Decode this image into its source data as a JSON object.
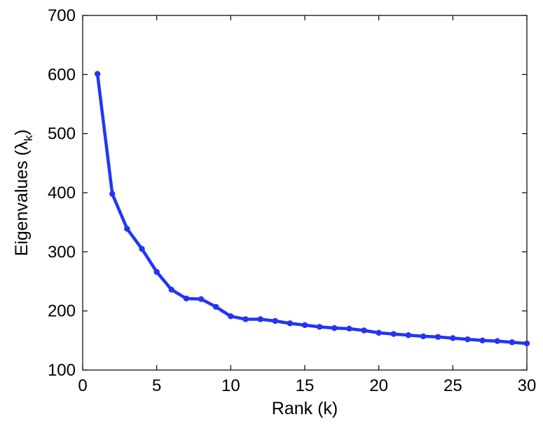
{
  "chart_data": {
    "type": "line",
    "title": "",
    "xlabel": "Rank (k)",
    "ylabel_main": "Eigenvalues (",
    "ylabel_symbol": "λ",
    "ylabel_subscript": "k",
    "ylabel_close": ")",
    "xlim": [
      0,
      30
    ],
    "ylim": [
      100,
      700
    ],
    "xticks": [
      0,
      5,
      10,
      15,
      20,
      25,
      30
    ],
    "yticks": [
      100,
      200,
      300,
      400,
      500,
      600,
      700
    ],
    "grid": false,
    "line_color": "#2136f5",
    "series": [
      {
        "x": [
          1,
          2,
          3,
          4,
          5,
          6,
          7,
          8,
          9,
          10,
          11,
          12,
          13,
          14,
          15,
          16,
          17,
          18,
          19,
          20,
          21,
          22,
          23,
          24,
          25,
          26,
          27,
          28,
          29,
          30
        ],
        "values": [
          601,
          398,
          339,
          305,
          266,
          236,
          221,
          220,
          207,
          191,
          186,
          186,
          183,
          179,
          176,
          173,
          171,
          170,
          167,
          163,
          161,
          159,
          157,
          156,
          154,
          152,
          150,
          149,
          147,
          145
        ]
      }
    ]
  }
}
